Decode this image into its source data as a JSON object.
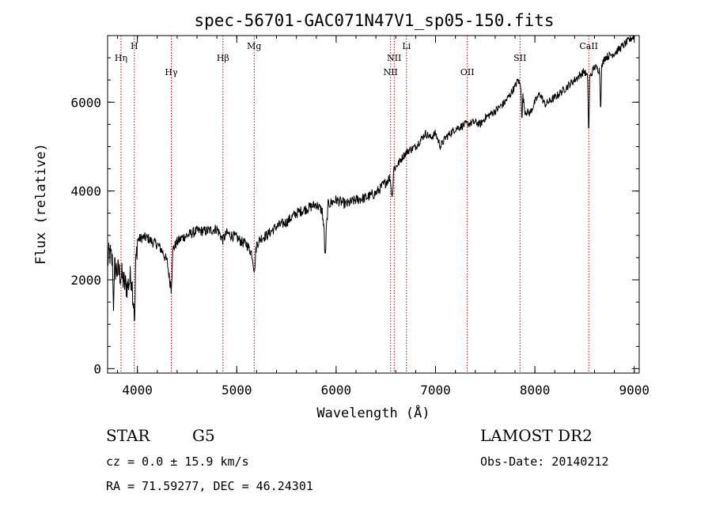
{
  "chart_data": {
    "type": "line",
    "title": "spec-56701-GAC071N47V1_sp05-150.fits",
    "xlabel": "Wavelength (Å)",
    "ylabel": "Flux (relative)",
    "xlim": [
      3700,
      9050
    ],
    "ylim": [
      -100,
      7500
    ],
    "xticks": [
      4000,
      5000,
      6000,
      7000,
      8000,
      9000
    ],
    "yticks": [
      0,
      2000,
      4000,
      6000
    ],
    "grid": false,
    "spectrum_anchors": {
      "x": [
        3700,
        3720,
        3760,
        3800,
        3840,
        3870,
        3900,
        3940,
        3960,
        3980,
        4000,
        4050,
        4100,
        4150,
        4200,
        4250,
        4300,
        4330,
        4360,
        4400,
        4450,
        4500,
        4600,
        4700,
        4800,
        4860,
        4900,
        4950,
        5000,
        5050,
        5100,
        5150,
        5175,
        5200,
        5250,
        5300,
        5400,
        5500,
        5600,
        5700,
        5800,
        5860,
        5890,
        5920,
        6000,
        6100,
        6200,
        6300,
        6400,
        6500,
        6540,
        6563,
        6580,
        6620,
        6680,
        6720,
        6800,
        6900,
        6950,
        7000,
        7050,
        7100,
        7200,
        7300,
        7400,
        7450,
        7500,
        7600,
        7700,
        7800,
        7830,
        7870,
        7900,
        7950,
        8000,
        8050,
        8100,
        8200,
        8300,
        8400,
        8498,
        8542,
        8600,
        8662,
        8700,
        8800,
        8900,
        8950,
        9000
      ],
      "y": [
        2400,
        2600,
        2300,
        2200,
        2100,
        1900,
        1850,
        2100,
        1500,
        2200,
        2900,
        2950,
        2950,
        2850,
        2800,
        2650,
        2400,
        1900,
        2700,
        2850,
        2950,
        3000,
        3100,
        3100,
        3150,
        2900,
        3050,
        3000,
        2950,
        2850,
        2800,
        2600,
        2300,
        2800,
        2950,
        3000,
        3200,
        3300,
        3500,
        3600,
        3700,
        3550,
        2800,
        3700,
        3800,
        3700,
        3800,
        3850,
        3950,
        4200,
        4300,
        4050,
        4500,
        4600,
        4800,
        4900,
        5000,
        5300,
        5200,
        5300,
        5000,
        5200,
        5400,
        5500,
        5550,
        5500,
        5650,
        5800,
        6000,
        6350,
        6500,
        6300,
        5800,
        5750,
        6000,
        6200,
        5950,
        6100,
        6300,
        6500,
        6700,
        6500,
        6800,
        6700,
        7000,
        7100,
        7300,
        7400,
        7500
      ],
      "dips": [
        {
          "x": 3760,
          "y": 1300
        },
        {
          "x": 3970,
          "y": 900
        },
        {
          "x": 4340,
          "y": 1700
        },
        {
          "x": 5175,
          "y": 2150
        },
        {
          "x": 5890,
          "y": 2550
        },
        {
          "x": 6563,
          "y": 3850
        },
        {
          "x": 7870,
          "y": 5500
        },
        {
          "x": 8542,
          "y": 5150
        },
        {
          "x": 8662,
          "y": 5700
        }
      ]
    },
    "lines": [
      {
        "label": "Hη",
        "x": 3835
      },
      {
        "label": "H",
        "x": 3969
      },
      {
        "label": "Hγ",
        "x": 4341
      },
      {
        "label": "Hβ",
        "x": 4861
      },
      {
        "label": "Mg",
        "x": 5175
      },
      {
        "label": "NII",
        "x": 6548
      },
      {
        "label": "NII",
        "x": 6584
      },
      {
        "label": "Li",
        "x": 6708
      },
      {
        "label": "OII",
        "x": 7320
      },
      {
        "label": "SII",
        "x": 7850
      },
      {
        "label": "CaII",
        "x": 8542
      }
    ]
  },
  "info": {
    "class_label": "STAR",
    "subclass": "G5",
    "survey": "LAMOST DR2",
    "cz": "cz = 0.0 ± 15.9 km/s",
    "obs_date": "Obs-Date: 20140212",
    "radec": "RA =  71.59277, DEC =  46.24301"
  }
}
